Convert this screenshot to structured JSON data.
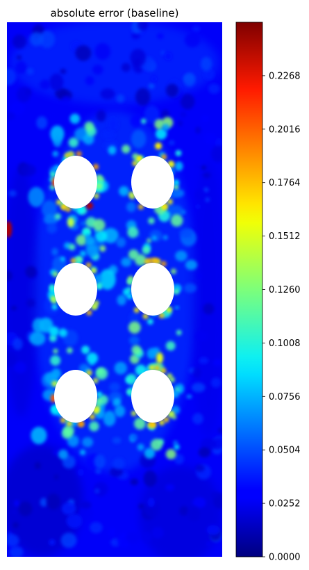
{
  "chart_data": {
    "type": "heatmap",
    "title": "absolute error (baseline)",
    "colormap": "jet",
    "colorbar": {
      "vmin": 0.0,
      "vmax": 0.252,
      "ticks": [
        0.0,
        0.0252,
        0.0504,
        0.0756,
        0.1008,
        0.126,
        0.1512,
        0.1764,
        0.2016,
        0.2268
      ],
      "tick_labels": [
        "0.0000",
        "0.0252",
        "0.0504",
        "0.0756",
        "0.1008",
        "0.1260",
        "0.1512",
        "0.1764",
        "0.2016",
        "0.2268"
      ]
    },
    "background_level": 0.03,
    "holes": {
      "rows": 3,
      "columns": 2,
      "description_hint": "six elliptical holes in a 2x3 grid, white (no data)"
    },
    "hotspots": [
      {
        "location": "around hole edges (top & bottom of each hole)",
        "level": 0.15
      },
      {
        "location": "top-left hole, lower-right edge",
        "level": 0.24
      },
      {
        "location": "left boundary at mid-upper height",
        "level": 0.24
      },
      {
        "location": "bottom-left hole, left edge",
        "level": 0.2
      },
      {
        "location": "top-left hole, left edge",
        "level": 0.2
      }
    ],
    "grid": false,
    "axes_visible": false
  }
}
